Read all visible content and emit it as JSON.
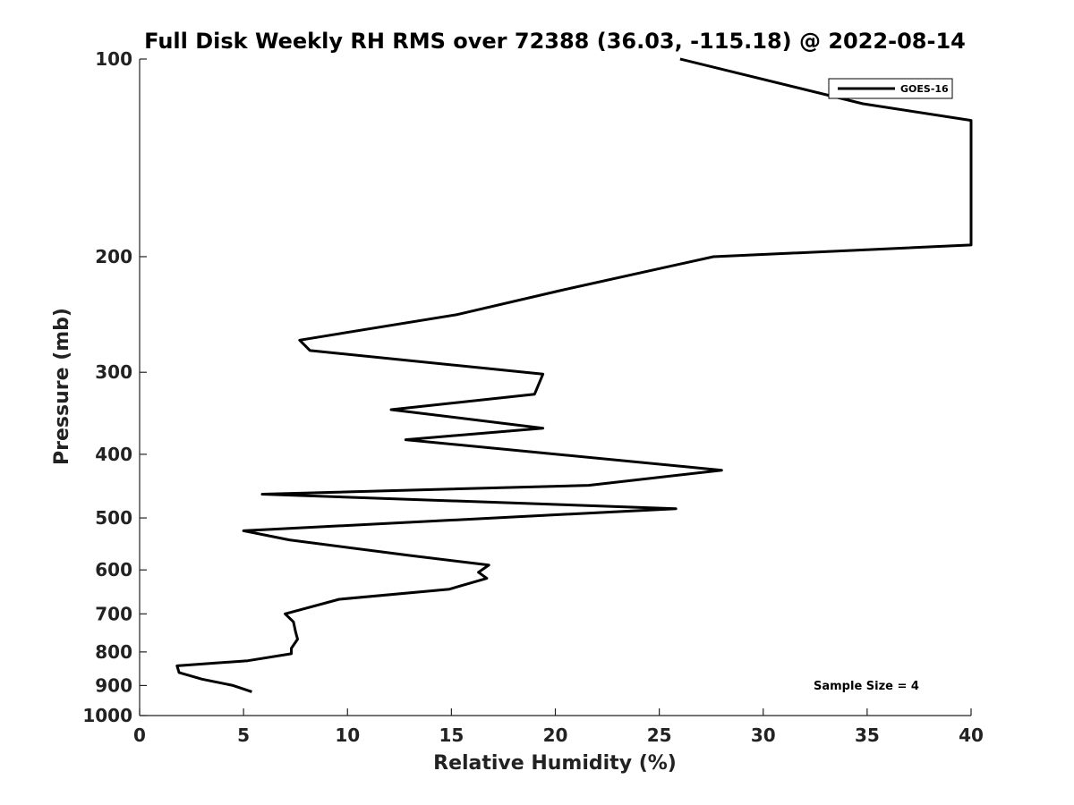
{
  "chart_data": {
    "type": "line",
    "title": "Full Disk Weekly RH RMS over 72388 (36.03, -115.18) @ 2022-08-14",
    "xlabel": "Relative Humidity (%)",
    "ylabel": "Pressure (mb)",
    "xlim": [
      0,
      40
    ],
    "ylim": [
      1000,
      100
    ],
    "y_scale": "log",
    "y_inverted": true,
    "grid": false,
    "legend_position": "top-right",
    "x_ticks": [
      0,
      5,
      10,
      15,
      20,
      25,
      30,
      35,
      40
    ],
    "y_ticks": [
      100,
      200,
      300,
      400,
      500,
      600,
      700,
      800,
      900,
      1000
    ],
    "annotation": "Sample Size = 4",
    "series": [
      {
        "name": "GOES-16",
        "color": "#000000",
        "points": [
          [
            5.4,
            920
          ],
          [
            4.5,
            900
          ],
          [
            3.0,
            880
          ],
          [
            1.9,
            860
          ],
          [
            1.8,
            840
          ],
          [
            5.2,
            825
          ],
          [
            7.3,
            805
          ],
          [
            7.3,
            790
          ],
          [
            7.6,
            765
          ],
          [
            7.5,
            745
          ],
          [
            7.4,
            720
          ],
          [
            7.0,
            700
          ],
          [
            9.6,
            665
          ],
          [
            14.9,
            642
          ],
          [
            16.7,
            618
          ],
          [
            16.3,
            605
          ],
          [
            16.8,
            590
          ],
          [
            12.9,
            570
          ],
          [
            7.2,
            540
          ],
          [
            5.0,
            523
          ],
          [
            25.8,
            484
          ],
          [
            5.9,
            460
          ],
          [
            21.6,
            446
          ],
          [
            28.0,
            423
          ],
          [
            12.8,
            380
          ],
          [
            19.4,
            365
          ],
          [
            12.1,
            342
          ],
          [
            19.0,
            324
          ],
          [
            19.4,
            302
          ],
          [
            8.2,
            278
          ],
          [
            7.7,
            268
          ],
          [
            15.3,
            245
          ],
          [
            20.3,
            225
          ],
          [
            27.6,
            200
          ],
          [
            40.0,
            192
          ],
          [
            40.0,
            124
          ],
          [
            34.8,
            117
          ],
          [
            26.0,
            100
          ]
        ]
      }
    ]
  }
}
